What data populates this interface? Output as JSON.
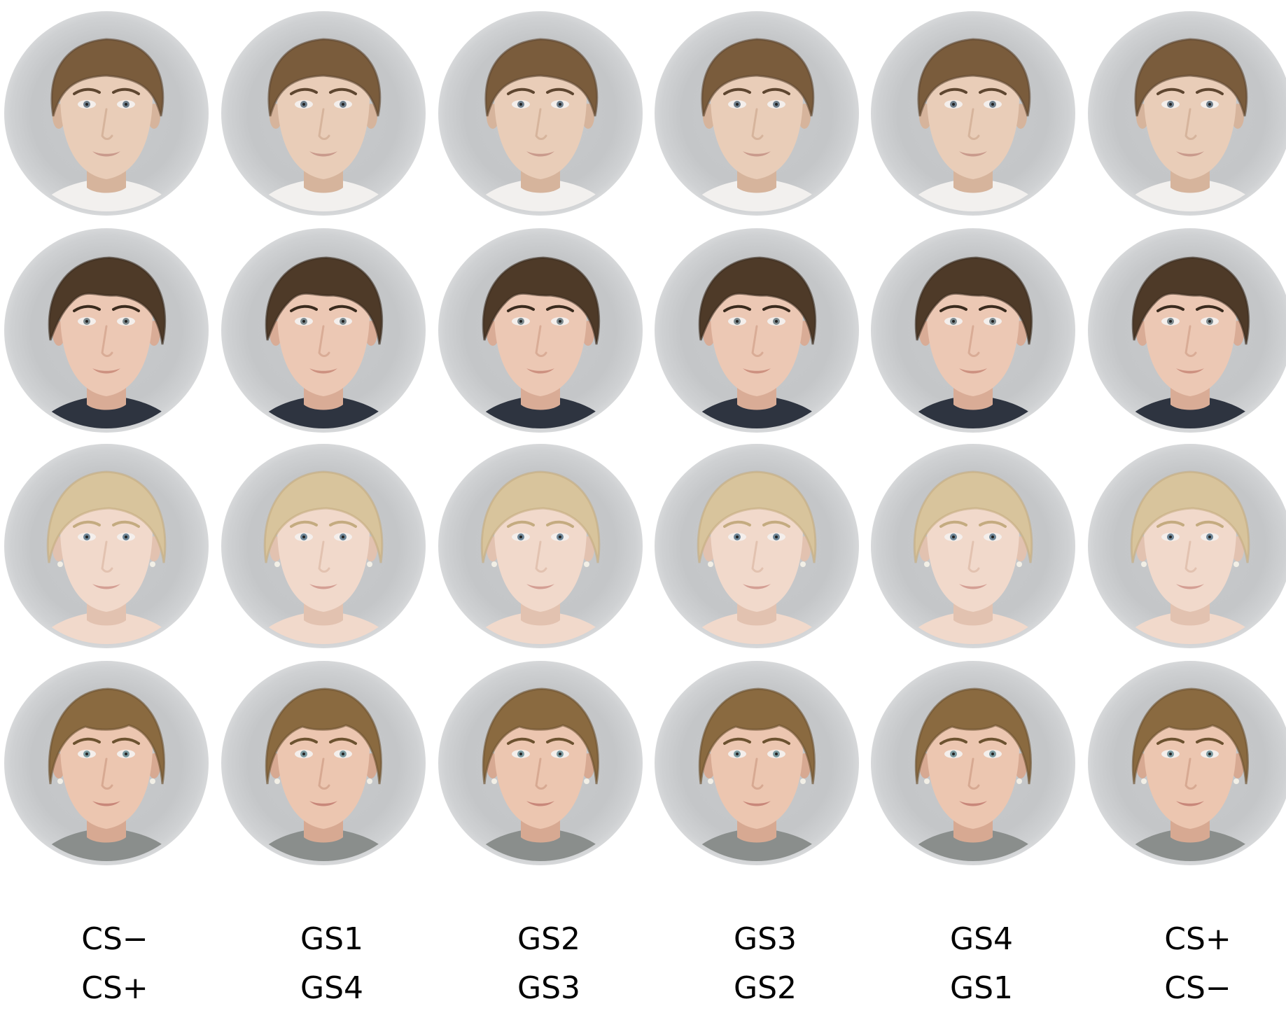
{
  "faces": {
    "rows": [
      {
        "subject": "male-1",
        "hair": "#7a5c3c",
        "hair_dark": "#5e4630",
        "skin": "#e9cdb8",
        "skin_shade": "#d6b49c",
        "lips": "#c99a8c",
        "shirt": "#f2f0ee",
        "eyes": "#6f7f8c",
        "style": "short"
      },
      {
        "subject": "male-2",
        "hair": "#4e3a28",
        "hair_dark": "#3a2b1e",
        "skin": "#ecc8b4",
        "skin_shade": "#d9ac96",
        "lips": "#cd9180",
        "shirt": "#2e3440",
        "eyes": "#7d8a8e",
        "style": "side"
      },
      {
        "subject": "female-1",
        "hair": "#d8c49c",
        "hair_dark": "#c4ab80",
        "skin": "#f1d9cb",
        "skin_shade": "#e2c2b0",
        "lips": "#d49f94",
        "shirt": "#f1d9cb",
        "eyes": "#6d8596",
        "style": "tied-blonde"
      },
      {
        "subject": "female-2",
        "hair": "#8a6a40",
        "hair_dark": "#6c5230",
        "skin": "#ecc6b0",
        "skin_shade": "#d7a992",
        "lips": "#c8877a",
        "shirt": "#8a8e8c",
        "eyes": "#7c9aa0",
        "style": "tied-brown"
      }
    ]
  },
  "labels": {
    "top_row": [
      "CS−",
      "GS1",
      "GS2",
      "GS3",
      "GS4",
      "CS+"
    ],
    "bottom_row": [
      "CS+",
      "GS4",
      "GS3",
      "GS2",
      "GS1",
      "CS−"
    ]
  }
}
